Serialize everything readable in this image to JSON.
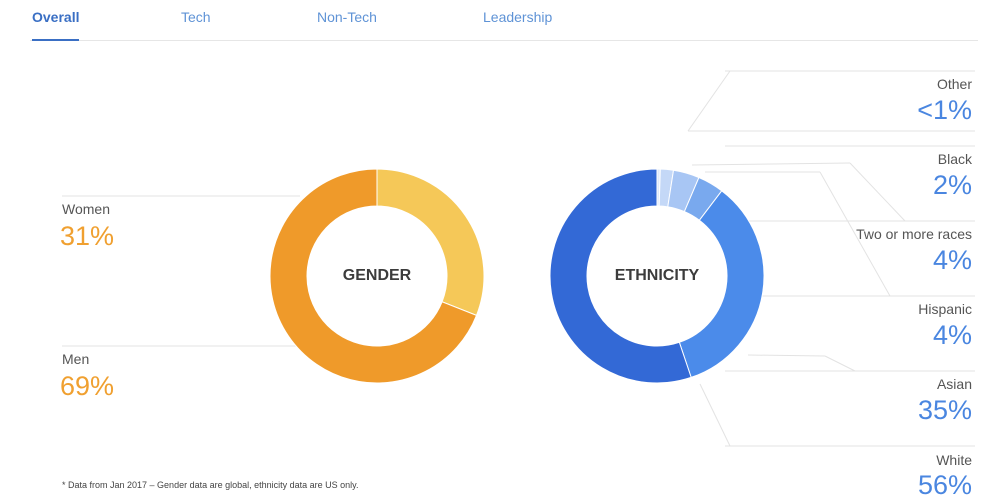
{
  "tabs": [
    {
      "label": "Overall",
      "active": true
    },
    {
      "label": "Tech",
      "active": false
    },
    {
      "label": "Non-Tech",
      "active": false
    },
    {
      "label": "Leadership",
      "active": false
    }
  ],
  "footnote": "* Data from Jan 2017 – Gender data are global, ethnicity data are US only.",
  "chart_data": [
    {
      "type": "pie",
      "title": "GENDER",
      "categories": [
        "Women",
        "Men"
      ],
      "value_labels": [
        "31%",
        "69%"
      ],
      "values": [
        31,
        69
      ],
      "colors": [
        "#f5c858",
        "#ef9a2a"
      ]
    },
    {
      "type": "pie",
      "title": "ETHNICITY",
      "categories": [
        "Other",
        "Black",
        "Two or more races",
        "Hispanic",
        "Asian",
        "White"
      ],
      "value_labels": [
        "<1%",
        "2%",
        "4%",
        "4%",
        "35%",
        "56%"
      ],
      "values": [
        0.5,
        2,
        4,
        4,
        35,
        56
      ],
      "colors": [
        "#dfe9fa",
        "#c4d8f7",
        "#a8c6f4",
        "#79a9ee",
        "#4b8bea",
        "#3369d6"
      ]
    }
  ]
}
